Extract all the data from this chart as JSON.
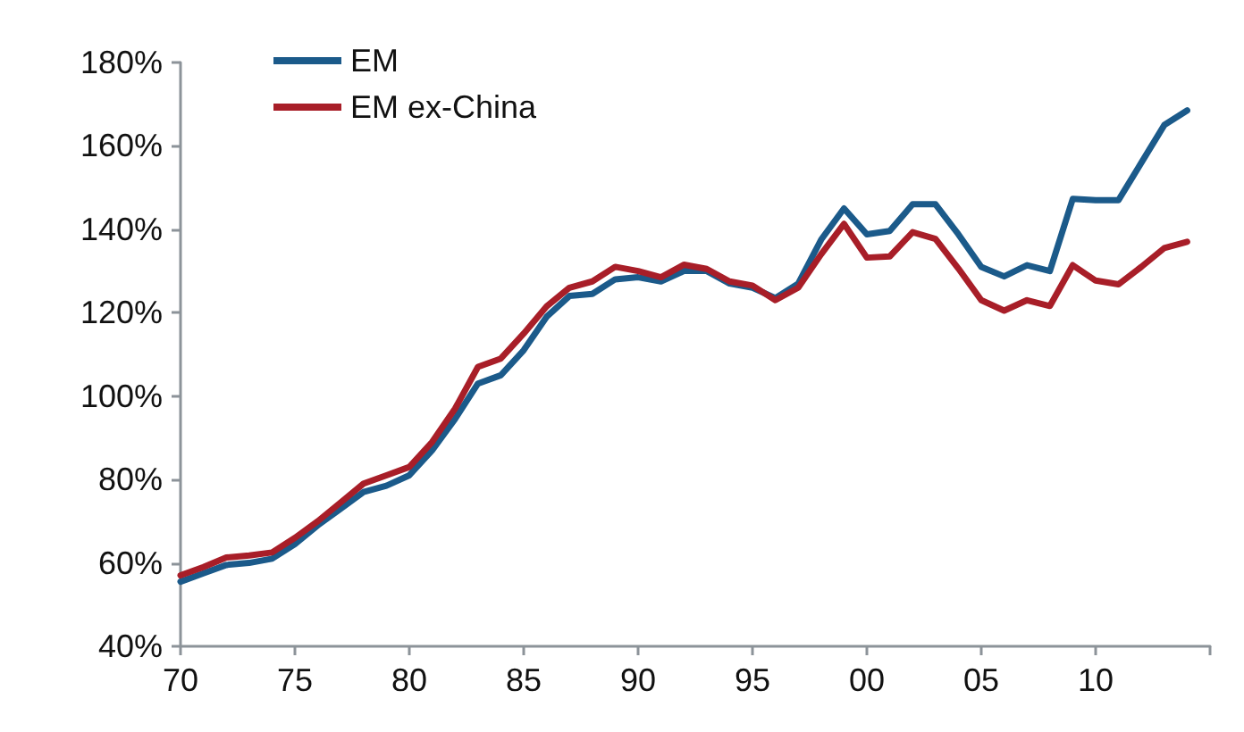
{
  "chart_data": {
    "type": "line",
    "x": [
      1970,
      1971,
      1972,
      1973,
      1974,
      1975,
      1976,
      1977,
      1978,
      1979,
      1980,
      1981,
      1982,
      1983,
      1984,
      1985,
      1986,
      1987,
      1988,
      1989,
      1990,
      1991,
      1992,
      1993,
      1994,
      1995,
      1996,
      1997,
      1998,
      1999,
      2000,
      2001,
      2002,
      2003,
      2004,
      2005,
      2006,
      2007,
      2008,
      2009,
      2010,
      2011,
      2012,
      2013,
      2014
    ],
    "series": [
      {
        "name": "EM",
        "color": "#1b5a8a",
        "values": [
          55.5,
          57.5,
          59.5,
          60,
          61,
          64.5,
          69,
          73,
          77,
          78.5,
          81,
          87,
          94.5,
          103,
          105,
          111,
          119,
          124,
          124.5,
          128,
          128.5,
          127.5,
          130,
          130,
          127,
          126,
          123.5,
          127,
          137.5,
          145,
          138.8,
          139.6,
          146,
          146,
          138.8,
          131,
          128.7,
          131.4,
          130,
          147.3,
          147,
          147,
          156,
          165,
          168.5
        ]
      },
      {
        "name": "EM ex-China",
        "color": "#a81e28",
        "values": [
          57,
          59,
          61.3,
          61.8,
          62.5,
          66,
          70,
          74.5,
          79,
          81,
          83,
          89,
          97,
          107,
          109,
          115,
          121.5,
          126,
          127.5,
          131,
          130,
          128.5,
          131.5,
          130.5,
          127.5,
          126.5,
          123,
          126,
          134,
          141.3,
          133.2,
          133.5,
          139.3,
          137.7,
          130.6,
          123,
          120.5,
          123,
          121.6,
          131.4,
          127.7,
          126.8,
          131,
          135.5,
          137
        ]
      }
    ],
    "xlim": [
      1970,
      2015
    ],
    "xticks": [
      {
        "value": 1970,
        "label": "70"
      },
      {
        "value": 1975,
        "label": "75"
      },
      {
        "value": 1980,
        "label": "80"
      },
      {
        "value": 1985,
        "label": "85"
      },
      {
        "value": 1990,
        "label": "90"
      },
      {
        "value": 1995,
        "label": "95"
      },
      {
        "value": 2000,
        "label": "00"
      },
      {
        "value": 2005,
        "label": "05"
      },
      {
        "value": 2010,
        "label": "10"
      },
      {
        "value": 2015,
        "label": null
      }
    ],
    "ylim": [
      40,
      180
    ],
    "yticks": [
      {
        "value": 40,
        "label": "40%"
      },
      {
        "value": 60,
        "label": "60%"
      },
      {
        "value": 80,
        "label": "80%"
      },
      {
        "value": 100,
        "label": "100%"
      },
      {
        "value": 120,
        "label": "120%"
      },
      {
        "value": 140,
        "label": "140%"
      },
      {
        "value": 160,
        "label": "160%"
      },
      {
        "value": 180,
        "label": "180%"
      }
    ],
    "grid": false,
    "legend": "top left",
    "marker": "none",
    "line_style": "solid"
  }
}
